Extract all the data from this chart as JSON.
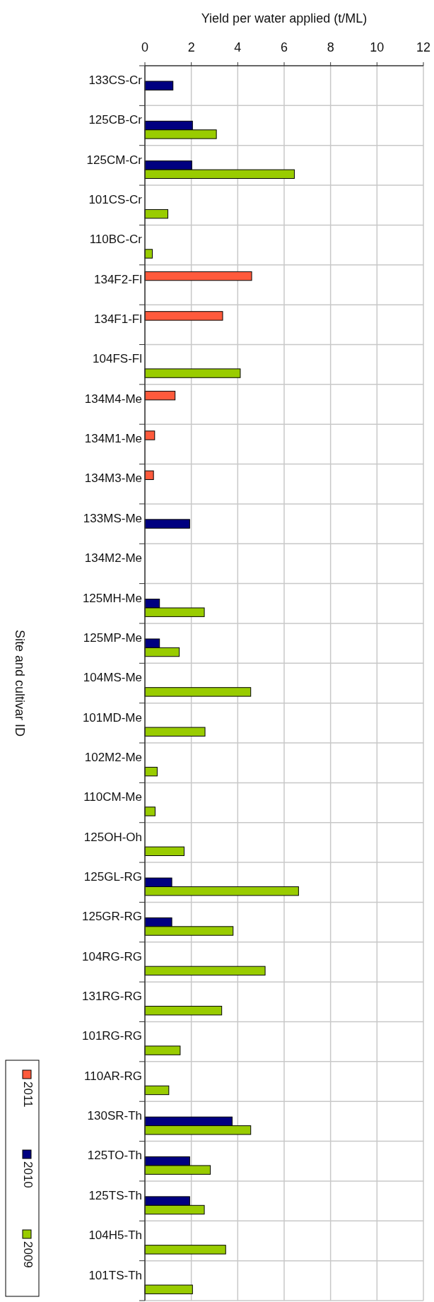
{
  "chart_data": {
    "type": "bar",
    "orientation": "horizontal",
    "xlabel": "Yield per water applied (t/ML)",
    "ylabel": "Site and cultivar ID",
    "categories": [
      "133CS-Cr",
      "125CB-Cr",
      "125CM-Cr",
      "101CS-Cr",
      "110BC-Cr",
      "134F2-Fl",
      "134F1-Fl",
      "104FS-Fl",
      "134M4-Me",
      "134M1-Me",
      "134M3-Me",
      "133MS-Me",
      "134M2-Me",
      "125MH-Me",
      "125MP-Me",
      "104MS-Me",
      "101MD-Me",
      "102M2-Me",
      "110CM-Me",
      "125OH-Oh",
      "125GL-RG",
      "125GR-RG",
      "104RG-RG",
      "131RG-RG",
      "101RG-RG",
      "110AR-RG",
      "130SR-Th",
      "125TO-Th",
      "125TS-Th",
      "104H5-Th",
      "101TS-Th"
    ],
    "series": [
      {
        "name": "2011",
        "color": "#ff5a3c",
        "values": [
          null,
          null,
          null,
          null,
          null,
          4.6,
          3.35,
          null,
          1.3,
          0.42,
          0.37,
          null,
          null,
          null,
          null,
          null,
          null,
          null,
          null,
          null,
          null,
          null,
          null,
          null,
          null,
          null,
          null,
          null,
          null,
          null,
          null
        ]
      },
      {
        "name": "2010",
        "color": "#000080",
        "values": [
          1.21,
          2.05,
          2.02,
          null,
          null,
          null,
          null,
          null,
          null,
          null,
          null,
          1.93,
          null,
          0.63,
          0.63,
          null,
          null,
          null,
          null,
          null,
          1.16,
          1.16,
          null,
          null,
          null,
          null,
          3.76,
          1.93,
          1.93,
          null,
          null
        ]
      },
      {
        "name": "2009",
        "color": "#99cc00",
        "values": [
          null,
          3.08,
          6.44,
          0.99,
          0.32,
          null,
          null,
          4.11,
          null,
          null,
          null,
          null,
          null,
          2.56,
          1.48,
          4.56,
          2.59,
          0.53,
          0.44,
          1.69,
          6.62,
          3.8,
          5.18,
          3.31,
          1.52,
          1.03,
          4.56,
          2.82,
          2.56,
          3.48,
          2.05
        ]
      }
    ],
    "xlim": [
      0,
      12
    ],
    "xticks": [
      0,
      2,
      4,
      6,
      8,
      10,
      12
    ],
    "grid": true,
    "legend": "left"
  }
}
